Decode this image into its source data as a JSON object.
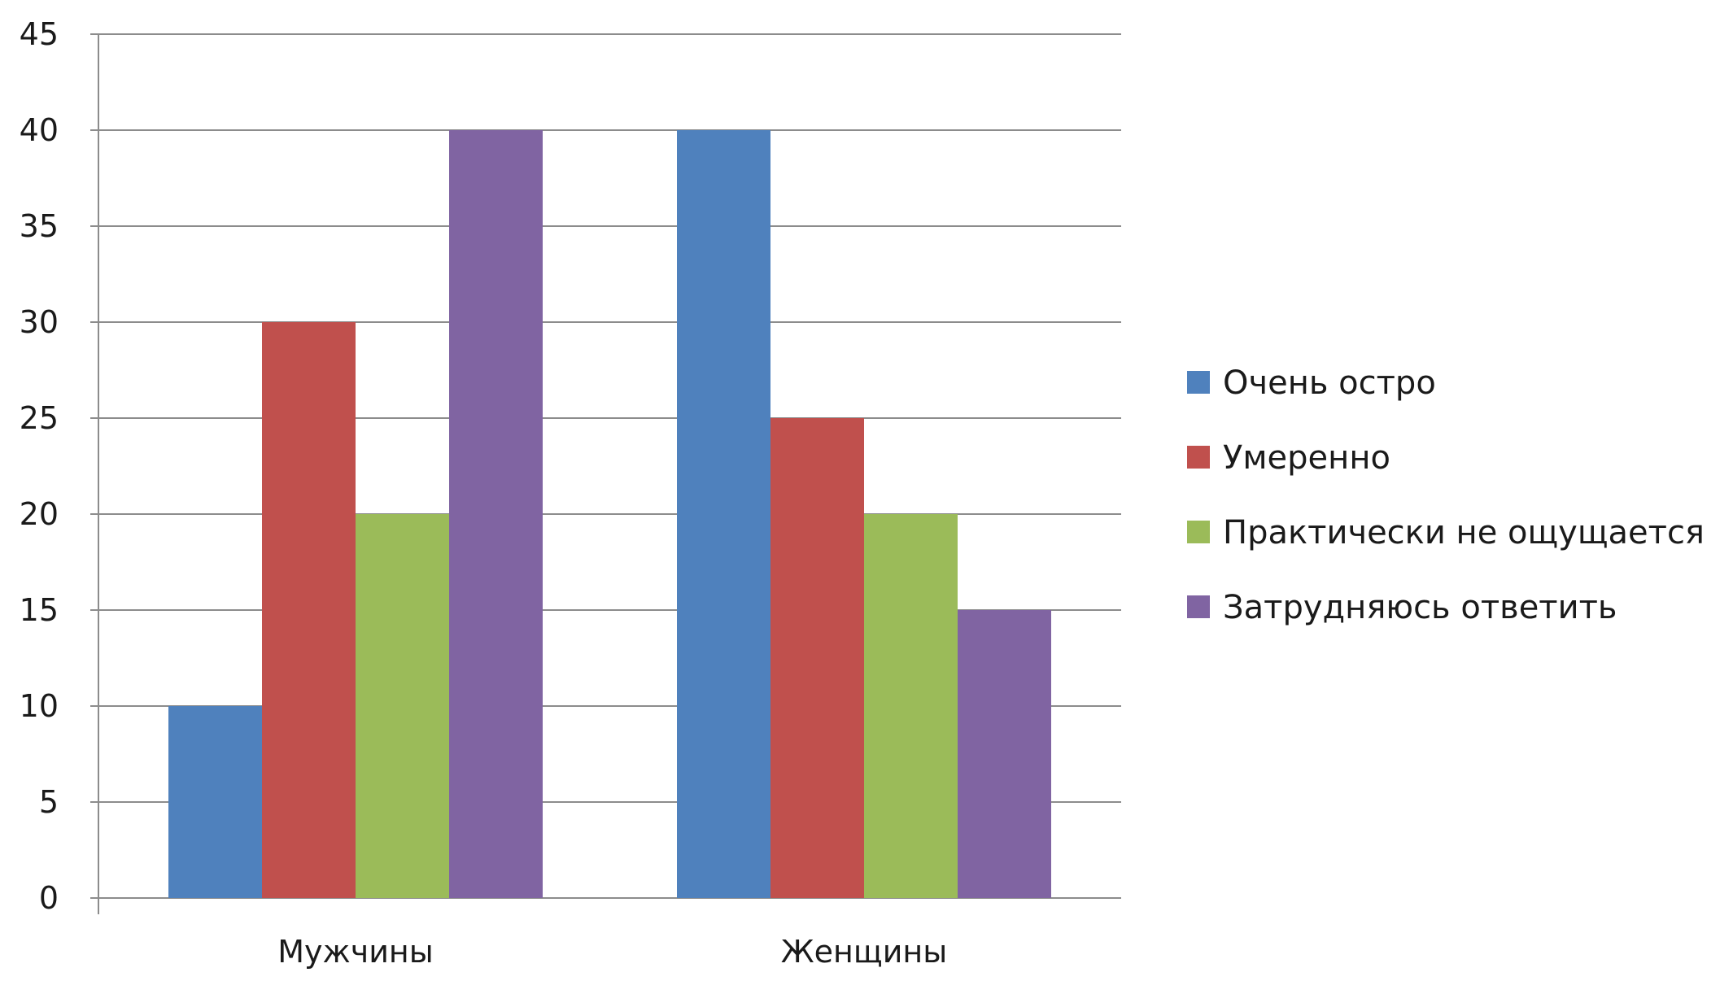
{
  "chart_data": {
    "type": "bar",
    "categories": [
      "Мужчины",
      "Женщины"
    ],
    "series": [
      {
        "name": "Очень остро",
        "values": [
          10,
          40
        ],
        "color": "#4F81BD"
      },
      {
        "name": "Умеренно",
        "values": [
          30,
          25
        ],
        "color": "#C0504D"
      },
      {
        "name": "Практически не ощущается",
        "values": [
          20,
          20
        ],
        "color": "#9BBB59"
      },
      {
        "name": "Затрудняюсь ответить",
        "values": [
          40,
          15
        ],
        "color": "#8064A2"
      }
    ],
    "yticks": [
      "0",
      "5",
      "10",
      "15",
      "20",
      "25",
      "30",
      "35",
      "40",
      "45"
    ],
    "ylim": [
      0,
      45
    ],
    "grid": true,
    "legend_position": "right",
    "title": "",
    "xlabel": "",
    "ylabel": ""
  }
}
